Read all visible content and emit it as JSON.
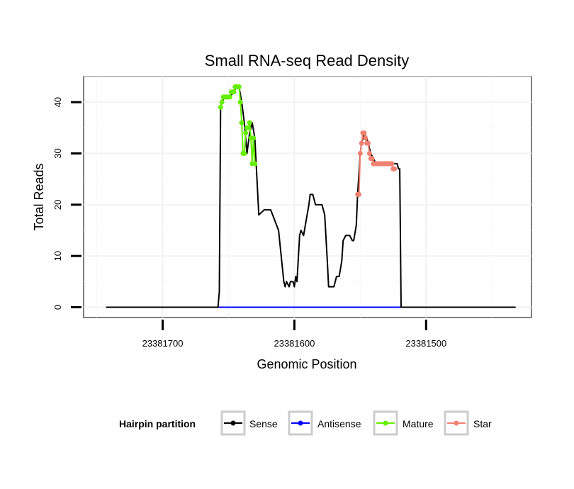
{
  "chart_data": {
    "type": "line",
    "title": "Small RNA-seq Read Density",
    "xlabel": "Genomic Position",
    "ylabel": "Total Reads",
    "x_reversed": true,
    "xlim": [
      23381760,
      23381420
    ],
    "ylim": [
      -2,
      45
    ],
    "x_ticks": [
      23381700,
      23381600,
      23381500
    ],
    "x_tick_labels": [
      "23381700",
      "23381600",
      "23381500"
    ],
    "y_ticks": [
      0,
      10,
      20,
      30,
      40
    ],
    "y_tick_labels": [
      "0",
      "10",
      "20",
      "30",
      "40"
    ],
    "grid": true,
    "legend": {
      "title": "Hairpin partition",
      "position": "bottom",
      "items": [
        {
          "label": "Sense",
          "color": "#000000"
        },
        {
          "label": "Antisense",
          "color": "#0000ff"
        },
        {
          "label": "Mature",
          "color": "#66ee00"
        },
        {
          "label": "Star",
          "color": "#f08070"
        }
      ]
    },
    "series": [
      {
        "name": "Sense",
        "color": "#000000",
        "x": [
          23381743,
          23381658,
          23381657,
          23381656,
          23381655,
          23381653,
          23381651,
          23381649,
          23381646,
          23381644,
          23381642,
          23381640,
          23381638,
          23381636,
          23381634,
          23381633,
          23381632,
          23381630,
          23381629,
          23381627,
          23381623,
          23381622,
          23381620,
          23381618,
          23381612,
          23381610,
          23381608,
          23381607,
          23381606,
          23381604,
          23381603,
          23381601,
          23381600,
          23381599,
          23381598,
          23381596,
          23381595,
          23381593,
          23381591,
          23381589,
          23381588,
          23381586,
          23381584,
          23381583,
          23381581,
          23381579,
          23381577,
          23381575,
          23381574,
          23381572,
          23381570,
          23381568,
          23381566,
          23381564,
          23381563,
          23381561,
          23381559,
          23381558,
          23381556,
          23381555,
          23381553,
          23381552,
          23381550,
          23381549,
          23381547,
          23381545,
          23381544,
          23381542,
          23381540,
          23381538,
          23381536,
          23381534,
          23381531,
          23381529,
          23381527,
          23381525,
          23381524,
          23381523,
          23381522,
          23381521,
          23381520,
          23381519,
          23381514,
          23381432
        ],
        "values": [
          0,
          0,
          3,
          39,
          40,
          41,
          41,
          41,
          42,
          43,
          43,
          40,
          36,
          30,
          34,
          35,
          36,
          33,
          28,
          18,
          19,
          19,
          19,
          19,
          15,
          10,
          5,
          4,
          5,
          4,
          5,
          5,
          4,
          6,
          5,
          14,
          15,
          14,
          17,
          20,
          22,
          22,
          20,
          20,
          20,
          20,
          18,
          9,
          4,
          4,
          4,
          6,
          6,
          9,
          13,
          14,
          14,
          14,
          13,
          13,
          16,
          22,
          30,
          32,
          34,
          33,
          32,
          30,
          29,
          28,
          28,
          28,
          28,
          28,
          28,
          28,
          28,
          28,
          28,
          27,
          27,
          0,
          0,
          0
        ]
      },
      {
        "name": "Antisense",
        "color": "#0000ff",
        "x": [
          23381658,
          23381519
        ],
        "values": [
          0,
          0
        ]
      },
      {
        "name": "Mature",
        "color": "#66ee00",
        "x": [
          23381656,
          23381655,
          23381654,
          23381653,
          23381652,
          23381651,
          23381650,
          23381649,
          23381648,
          23381647,
          23381646,
          23381645,
          23381644,
          23381643,
          23381642,
          23381641,
          23381640,
          23381639,
          23381638,
          23381637,
          23381636,
          23381635,
          23381634,
          23381633,
          23381632,
          23381631,
          23381630
        ],
        "values": [
          39,
          40,
          41,
          41,
          41,
          41,
          41,
          41,
          42,
          42,
          42,
          43,
          43,
          43,
          43,
          40,
          36,
          30,
          30,
          34,
          35,
          35,
          36,
          33,
          28,
          33,
          28
        ]
      },
      {
        "name": "Star",
        "color": "#f08070",
        "x": [
          23381552,
          23381551,
          23381550,
          23381549,
          23381548,
          23381547,
          23381546,
          23381545,
          23381544,
          23381543,
          23381542,
          23381541,
          23381540,
          23381539,
          23381538,
          23381537,
          23381536,
          23381535,
          23381534,
          23381533,
          23381532,
          23381531,
          23381530,
          23381529,
          23381528,
          23381527,
          23381526,
          23381525,
          23381524
        ],
        "values": [
          22,
          22,
          30,
          32,
          34,
          34,
          33,
          32,
          32,
          30,
          29,
          29,
          28,
          28,
          28,
          28,
          28,
          28,
          28,
          28,
          28,
          28,
          28,
          28,
          28,
          28,
          28,
          27,
          27
        ]
      }
    ]
  }
}
